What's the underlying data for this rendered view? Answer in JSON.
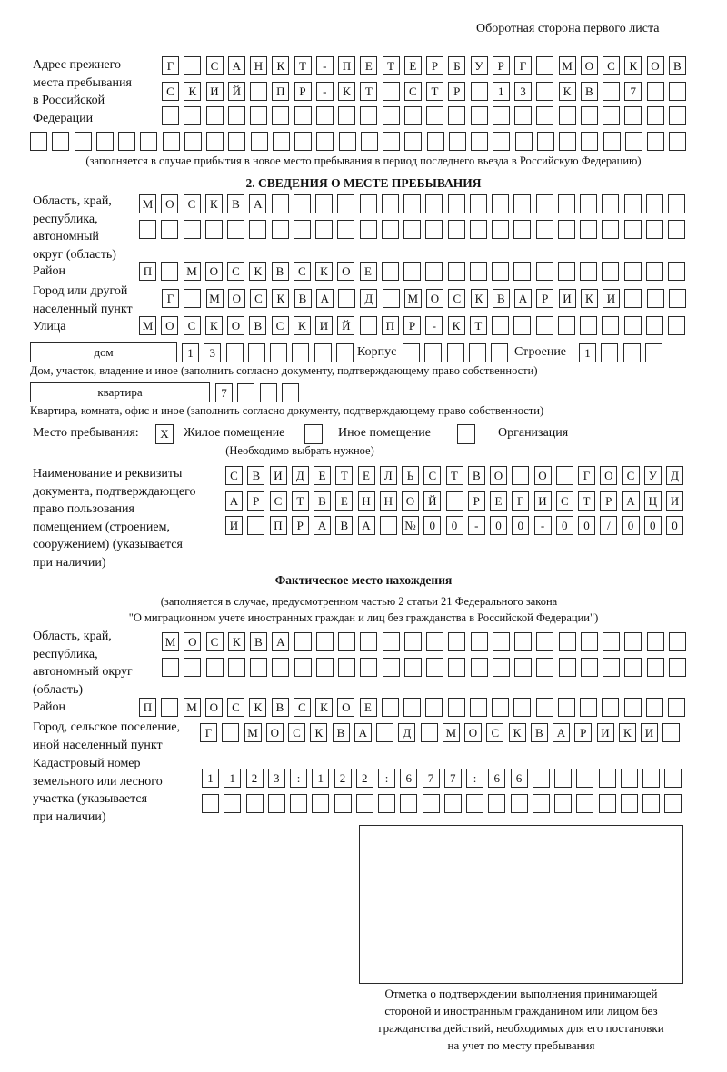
{
  "page_header": "Оборотная сторона первого листа",
  "prev_address": {
    "label": [
      "Адрес прежнего",
      "места пребывания",
      "в Российской",
      "Федерации"
    ],
    "rows": [
      [
        "Г",
        "",
        "С",
        "А",
        "Н",
        "К",
        "Т",
        "-",
        "П",
        "Е",
        "Т",
        "Е",
        "Р",
        "Б",
        "У",
        "Р",
        "Г",
        "",
        "М",
        "О",
        "С",
        "К",
        "О",
        "В"
      ],
      [
        "С",
        "К",
        "И",
        "Й",
        "",
        "П",
        "Р",
        "-",
        "К",
        "Т",
        "",
        "С",
        "Т",
        "Р",
        "",
        "1",
        "3",
        "",
        "К",
        "В",
        "",
        "7",
        "",
        ""
      ],
      [
        "",
        "",
        "",
        "",
        "",
        "",
        "",
        "",
        "",
        "",
        "",
        "",
        "",
        "",
        "",
        "",
        "",
        "",
        "",
        "",
        "",
        "",
        "",
        ""
      ],
      [
        "",
        "",
        "",
        "",
        "",
        "",
        "",
        "",
        "",
        "",
        "",
        "",
        "",
        "",
        "",
        "",
        "",
        "",
        "",
        "",
        "",
        "",
        "",
        "",
        "",
        "",
        "",
        "",
        "",
        ""
      ]
    ],
    "note": "(заполняется в случае прибытия в новое место пребывания в период последнего въезда в Российскую Федерацию)"
  },
  "section2": {
    "title": "2. СВЕДЕНИЯ О МЕСТЕ ПРЕБЫВАНИЯ",
    "region": {
      "label": [
        "Область, край,",
        "республика,",
        "автономный",
        "округ (область)"
      ],
      "rows": [
        [
          "М",
          "О",
          "С",
          "К",
          "В",
          "А",
          "",
          "",
          "",
          "",
          "",
          "",
          "",
          "",
          "",
          "",
          "",
          "",
          "",
          "",
          "",
          "",
          "",
          "",
          ""
        ],
        [
          "",
          "",
          "",
          "",
          "",
          "",
          "",
          "",
          "",
          "",
          "",
          "",
          "",
          "",
          "",
          "",
          "",
          "",
          "",
          "",
          "",
          "",
          "",
          "",
          ""
        ]
      ]
    },
    "district": {
      "label": "Район",
      "row": [
        "П",
        "",
        "М",
        "О",
        "С",
        "К",
        "В",
        "С",
        "К",
        "О",
        "Е",
        "",
        "",
        "",
        "",
        "",
        "",
        "",
        "",
        "",
        "",
        "",
        "",
        "",
        ""
      ]
    },
    "city": {
      "label": [
        "Город или другой",
        "населенный пункт"
      ],
      "row": [
        "Г",
        "",
        "М",
        "О",
        "С",
        "К",
        "В",
        "А",
        "",
        "Д",
        "",
        "М",
        "О",
        "С",
        "К",
        "В",
        "А",
        "Р",
        "И",
        "К",
        "И",
        "",
        "",
        ""
      ]
    },
    "street": {
      "label": "Улица",
      "row": [
        "М",
        "О",
        "С",
        "К",
        "О",
        "В",
        "С",
        "К",
        "И",
        "Й",
        "",
        "П",
        "Р",
        "-",
        "К",
        "Т",
        "",
        "",
        "",
        "",
        "",
        "",
        "",
        "",
        ""
      ]
    },
    "house": {
      "type": "дом",
      "number": [
        "1",
        "3",
        "",
        "",
        "",
        "",
        "",
        ""
      ],
      "korpus_label": "Корпус",
      "korpus": [
        "",
        "",
        "",
        "",
        ""
      ],
      "stroenie_label": "Строение",
      "stroenie": [
        "1",
        "",
        "",
        ""
      ],
      "note": "Дом, участок, владение и иное (заполнить согласно документу, подтверждающему право собственности)"
    },
    "apartment": {
      "type": "квартира",
      "number": [
        "7",
        "",
        "",
        ""
      ],
      "note": "Квартира, комната, офис и иное (заполнить согласно документу, подтверждающему право собственности)"
    },
    "place": {
      "label": "Место пребывания:",
      "options": [
        {
          "label": "Жилое помещение",
          "mark": "X"
        },
        {
          "label": "Иное помещение",
          "mark": ""
        },
        {
          "label": "Организация",
          "mark": ""
        }
      ],
      "note": "(Необходимо выбрать нужное)"
    },
    "document": {
      "label": [
        "Наименование и реквизиты",
        "документа, подтверждающего",
        "право пользования",
        "помещением (строением,",
        "сооружением) (указывается",
        "при наличии)"
      ],
      "rows": [
        [
          "С",
          "В",
          "И",
          "Д",
          "Е",
          "Т",
          "Е",
          "Л",
          "Ь",
          "С",
          "Т",
          "В",
          "О",
          "",
          "О",
          "",
          "Г",
          "О",
          "С",
          "У",
          "Д"
        ],
        [
          "А",
          "Р",
          "С",
          "Т",
          "В",
          "Е",
          "Н",
          "Н",
          "О",
          "Й",
          "",
          "Р",
          "Е",
          "Г",
          "И",
          "С",
          "Т",
          "Р",
          "А",
          "Ц",
          "И"
        ],
        [
          "И",
          "",
          "П",
          "Р",
          "А",
          "В",
          "А",
          "",
          "№",
          "0",
          "0",
          "-",
          "0",
          "0",
          "-",
          "0",
          "0",
          "/",
          "0",
          "0",
          "0"
        ]
      ]
    }
  },
  "actual": {
    "title": "Фактическое место нахождения",
    "note1": "(заполняется в случае, предусмотренном частью 2 статьи 21 Федерального закона",
    "note2": "\"О миграционном учете иностранных граждан и лиц без гражданства в Российской Федерации\")",
    "region": {
      "label": [
        "Область, край,",
        "республика,",
        "автономный округ",
        "(область)"
      ],
      "rows": [
        [
          "М",
          "О",
          "С",
          "К",
          "В",
          "А",
          "",
          "",
          "",
          "",
          "",
          "",
          "",
          "",
          "",
          "",
          "",
          "",
          "",
          "",
          "",
          "",
          "",
          ""
        ],
        [
          "",
          "",
          "",
          "",
          "",
          "",
          "",
          "",
          "",
          "",
          "",
          "",
          "",
          "",
          "",
          "",
          "",
          "",
          "",
          "",
          "",
          "",
          "",
          ""
        ]
      ]
    },
    "district": {
      "label": "Район",
      "row": [
        "П",
        "",
        "М",
        "О",
        "С",
        "К",
        "В",
        "С",
        "К",
        "О",
        "Е",
        "",
        "",
        "",
        "",
        "",
        "",
        "",
        "",
        "",
        "",
        "",
        "",
        "",
        ""
      ]
    },
    "city": {
      "label": [
        "Город, сельское поселение,",
        "иной населенный пункт"
      ],
      "row": [
        "Г",
        "",
        "М",
        "О",
        "С",
        "К",
        "В",
        "А",
        "",
        "Д",
        "",
        "М",
        "О",
        "С",
        "К",
        "В",
        "А",
        "Р",
        "И",
        "К",
        "И",
        ""
      ]
    },
    "cadastral": {
      "label": [
        "Кадастровый номер",
        "земельного или лесного",
        "участка (указывается",
        "при наличии)"
      ],
      "rows": [
        [
          "1",
          "1",
          "2",
          "3",
          ":",
          "1",
          "2",
          "2",
          ":",
          "6",
          "7",
          "7",
          ":",
          "6",
          "6",
          "",
          "",
          "",
          "",
          "",
          "",
          ""
        ],
        [
          "",
          "",
          "",
          "",
          "",
          "",
          "",
          "",
          "",
          "",
          "",
          "",
          "",
          "",
          "",
          "",
          "",
          "",
          "",
          "",
          "",
          ""
        ]
      ]
    }
  },
  "stamp": {
    "caption": [
      "Отметка о подтверждении выполнения принимающей",
      "стороной и иностранным гражданином или лицом без",
      "гражданства действий, необходимых для его постановки",
      "на учет по месту пребывания"
    ]
  }
}
